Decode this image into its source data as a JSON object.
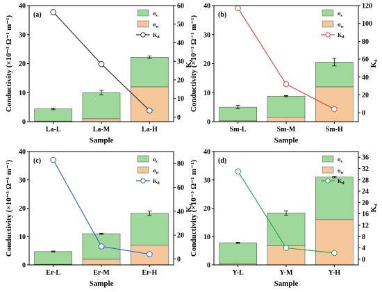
{
  "colors": {
    "sigma_s": "#9ed89a",
    "sigma_w": "#f6c79b",
    "bar_edge": "#555555",
    "panel_frame": "#000000"
  },
  "legend_labels": {
    "sigma_s": "σs",
    "sigma_w": "σw",
    "kd": "Kd"
  },
  "chart_data": [
    {
      "type": "bar",
      "panel_label": "(a)",
      "categories": [
        "La-L",
        "La-M",
        "La-H"
      ],
      "xlabel": "Sample",
      "ylabel": "Conductivity (×10⁻³ Ω⁻¹ m⁻¹)",
      "y2label": "Kd",
      "ylim": [
        0,
        40
      ],
      "y_ticks": [
        0,
        10,
        20,
        30,
        40
      ],
      "y2lim": [
        -2.5,
        60
      ],
      "y2_ticks": [
        0,
        10,
        20,
        30,
        40,
        50,
        60
      ],
      "series": [
        {
          "name": "σs",
          "values": [
            4.2,
            9.0,
            10.2
          ]
        },
        {
          "name": "σw",
          "values": [
            0.2,
            1.0,
            12.0
          ]
        }
      ],
      "total_error": [
        0.3,
        0.8,
        0.4
      ],
      "kd": {
        "name": "Kd",
        "values": [
          56.5,
          28.5,
          3.5
        ],
        "color": "#333333"
      },
      "legend_position": "top-right"
    },
    {
      "type": "bar",
      "panel_label": "(b)",
      "categories": [
        "Sm-L",
        "Sm-M",
        "Sm-H"
      ],
      "xlabel": "Sample",
      "ylabel": "Conductivity (×10⁻³ Ω⁻¹ m⁻¹)",
      "y2label": "Kd",
      "ylim": [
        0,
        40
      ],
      "y_ticks": [
        0,
        10,
        20,
        30,
        40
      ],
      "y2lim": [
        -10,
        120
      ],
      "y2_ticks": [
        0,
        20,
        40,
        60,
        80,
        100,
        120
      ],
      "series": [
        {
          "name": "σs",
          "values": [
            4.7,
            7.3,
            8.5
          ]
        },
        {
          "name": "σw",
          "values": [
            0.3,
            1.5,
            12.0
          ]
        }
      ],
      "total_error": [
        0.6,
        0.2,
        1.3
      ],
      "kd": {
        "name": "Kd",
        "values": [
          117,
          32,
          4
        ],
        "color": "#e8463c"
      },
      "legend_position": "top-right"
    },
    {
      "type": "bar",
      "panel_label": "(c)",
      "categories": [
        "Er-L",
        "Er-M",
        "Er-H"
      ],
      "xlabel": "Sample",
      "ylabel": "Conductivity (×10⁻³ Ω⁻¹ m⁻¹)",
      "y2label": "Kd",
      "ylim": [
        0,
        40
      ],
      "y_ticks": [
        0,
        10,
        20,
        30,
        40
      ],
      "y2lim": [
        -5,
        90
      ],
      "y2_ticks": [
        0,
        20,
        40,
        60,
        80
      ],
      "series": [
        {
          "name": "σs",
          "values": [
            4.5,
            9.0,
            11.2
          ]
        },
        {
          "name": "σw",
          "values": [
            0.2,
            2.0,
            7.0
          ]
        }
      ],
      "total_error": [
        0.2,
        0.2,
        0.8
      ],
      "kd": {
        "name": "Kd",
        "values": [
          83,
          10.5,
          4
        ],
        "color": "#2f6bd8"
      },
      "legend_position": "top-right"
    },
    {
      "type": "bar",
      "panel_label": "(d)",
      "categories": [
        "Y-L",
        "Y-M",
        "Y-H"
      ],
      "xlabel": "Sample",
      "ylabel": "Conductivity (×10⁻³ Ω⁻¹ m⁻¹)",
      "y2label": "Kd",
      "ylim": [
        0,
        40
      ],
      "y_ticks": [
        0,
        10,
        20,
        30,
        40
      ],
      "y2lim": [
        -2,
        38
      ],
      "y2_ticks": [
        0,
        4,
        8,
        12,
        16,
        20,
        24,
        28,
        32,
        36
      ],
      "series": [
        {
          "name": "σs",
          "values": [
            7.3,
            11.5,
            15.0
          ]
        },
        {
          "name": "σw",
          "values": [
            0.5,
            6.8,
            16.0
          ]
        }
      ],
      "total_error": [
        0.2,
        0.8,
        0.3
      ],
      "kd": {
        "name": "Kd",
        "values": [
          31,
          4,
          2.2
        ],
        "color": "#2aa84a"
      },
      "legend_position": "top-right"
    }
  ]
}
